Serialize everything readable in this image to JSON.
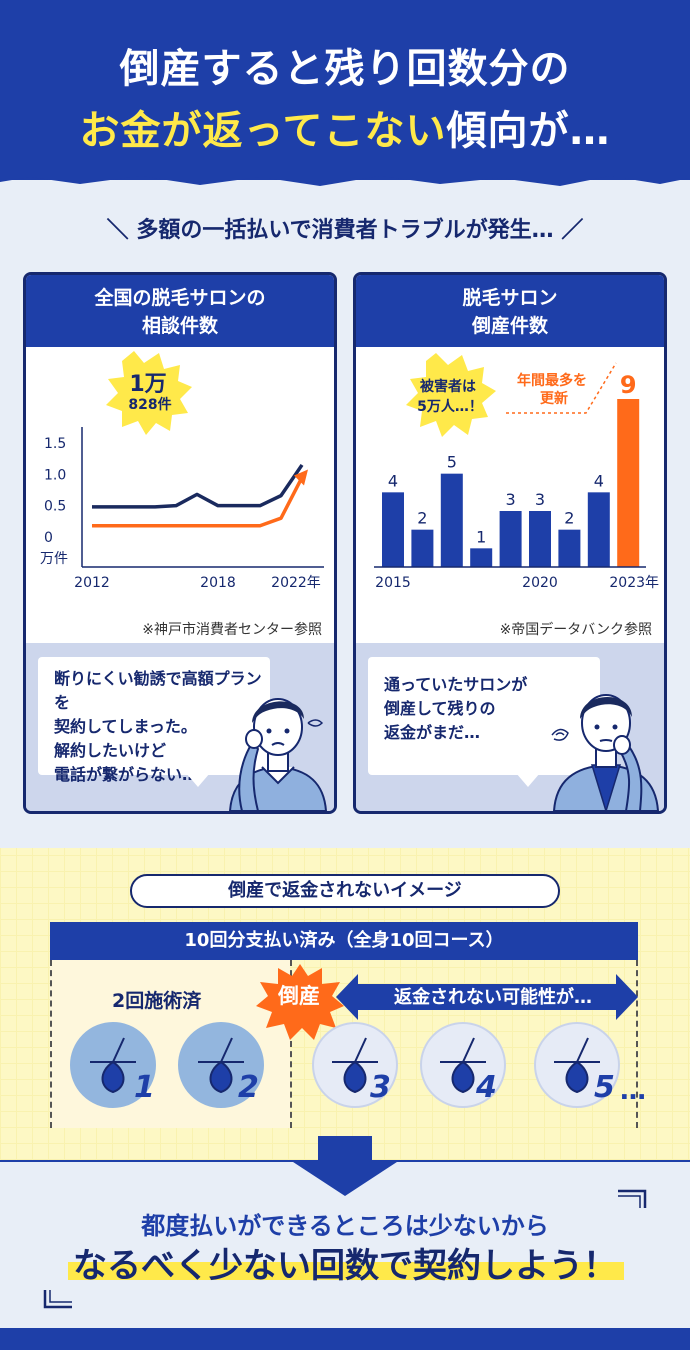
{
  "header": {
    "title_line1": "倒産すると残り回数分の",
    "title_line2_highlight": "お金が返ってこない",
    "title_line2_rest": "傾向が…"
  },
  "subtitle": "多額の一括払いで消費者トラブルが発生…",
  "left_panel": {
    "title_line1": "全国の脱毛サロンの",
    "title_line2": "相談件数",
    "badge_line1": "1万",
    "badge_line2": "828件",
    "y_unit": "万件",
    "source": "※神戸市消費者センター参照",
    "quote_lines": [
      "断りにくい勧誘で高額プランを",
      "契約してしまった。",
      "解約したいけど",
      "電話が繋がらない…"
    ]
  },
  "right_panel": {
    "title_line1": "脱毛サロン",
    "title_line2": "倒産件数",
    "badge_line1": "被害者は",
    "badge_line2": "5万人…！",
    "annotation_line1": "年間最多を",
    "annotation_line2": "更新",
    "source": "※帝国データバンク参照",
    "quote_lines": [
      "通っていたサロンが",
      "倒産して残りの",
      "返金がまだ…"
    ]
  },
  "chart_data": [
    {
      "type": "line",
      "title": "全国の脱毛サロンの相談件数",
      "ylabel": "万件",
      "ylim": [
        0,
        1.5
      ],
      "yticks": [
        "1.5",
        "1.0",
        "0.5",
        "0"
      ],
      "xticks": [
        "2012",
        "2018",
        "2022年"
      ],
      "x": [
        2012,
        2013,
        2014,
        2015,
        2016,
        2017,
        2018,
        2019,
        2020,
        2021,
        2022
      ],
      "series": [
        {
          "values": [
            0.48,
            0.48,
            0.48,
            0.48,
            0.5,
            0.68,
            0.5,
            0.5,
            0.5,
            0.66,
            1.15
          ],
          "color": "#1a2a5e"
        },
        {
          "values": [
            0.18,
            0.18,
            0.18,
            0.18,
            0.18,
            0.18,
            0.18,
            0.18,
            0.18,
            0.3,
            0.95
          ],
          "color": "#ff6a1a"
        }
      ]
    },
    {
      "type": "bar",
      "title": "脱毛サロン倒産件数",
      "categories": [
        "2015",
        "2016",
        "2017",
        "2018",
        "2019",
        "2020",
        "2021",
        "2022",
        "2023年"
      ],
      "xtick_labels": [
        "2015",
        "2020",
        "2023年"
      ],
      "values": [
        4,
        2,
        5,
        1,
        3,
        3,
        2,
        4,
        9
      ],
      "colors": [
        "#1e3fa8",
        "#1e3fa8",
        "#1e3fa8",
        "#1e3fa8",
        "#1e3fa8",
        "#1e3fa8",
        "#1e3fa8",
        "#1e3fa8",
        "#ff6a1a"
      ],
      "ylim": [
        0,
        9
      ]
    }
  ],
  "lower": {
    "pill": "倒産で返金されないイメージ",
    "course": "10回分支払い済み（全身10回コース）",
    "done_label": "2回施術済",
    "burst": "倒産",
    "arrow_text": "返金されない可能性が…",
    "numbers": [
      "1",
      "2",
      "3",
      "4",
      "5"
    ],
    "dots": "…"
  },
  "bottom": {
    "line1": "都度払いができるところは少ないから",
    "line2": "なるべく少ない回数で契約しよう！"
  },
  "colors": {
    "navy": "#1e3fa8",
    "orange": "#ff6a1a",
    "yellow": "#ffe94a"
  }
}
